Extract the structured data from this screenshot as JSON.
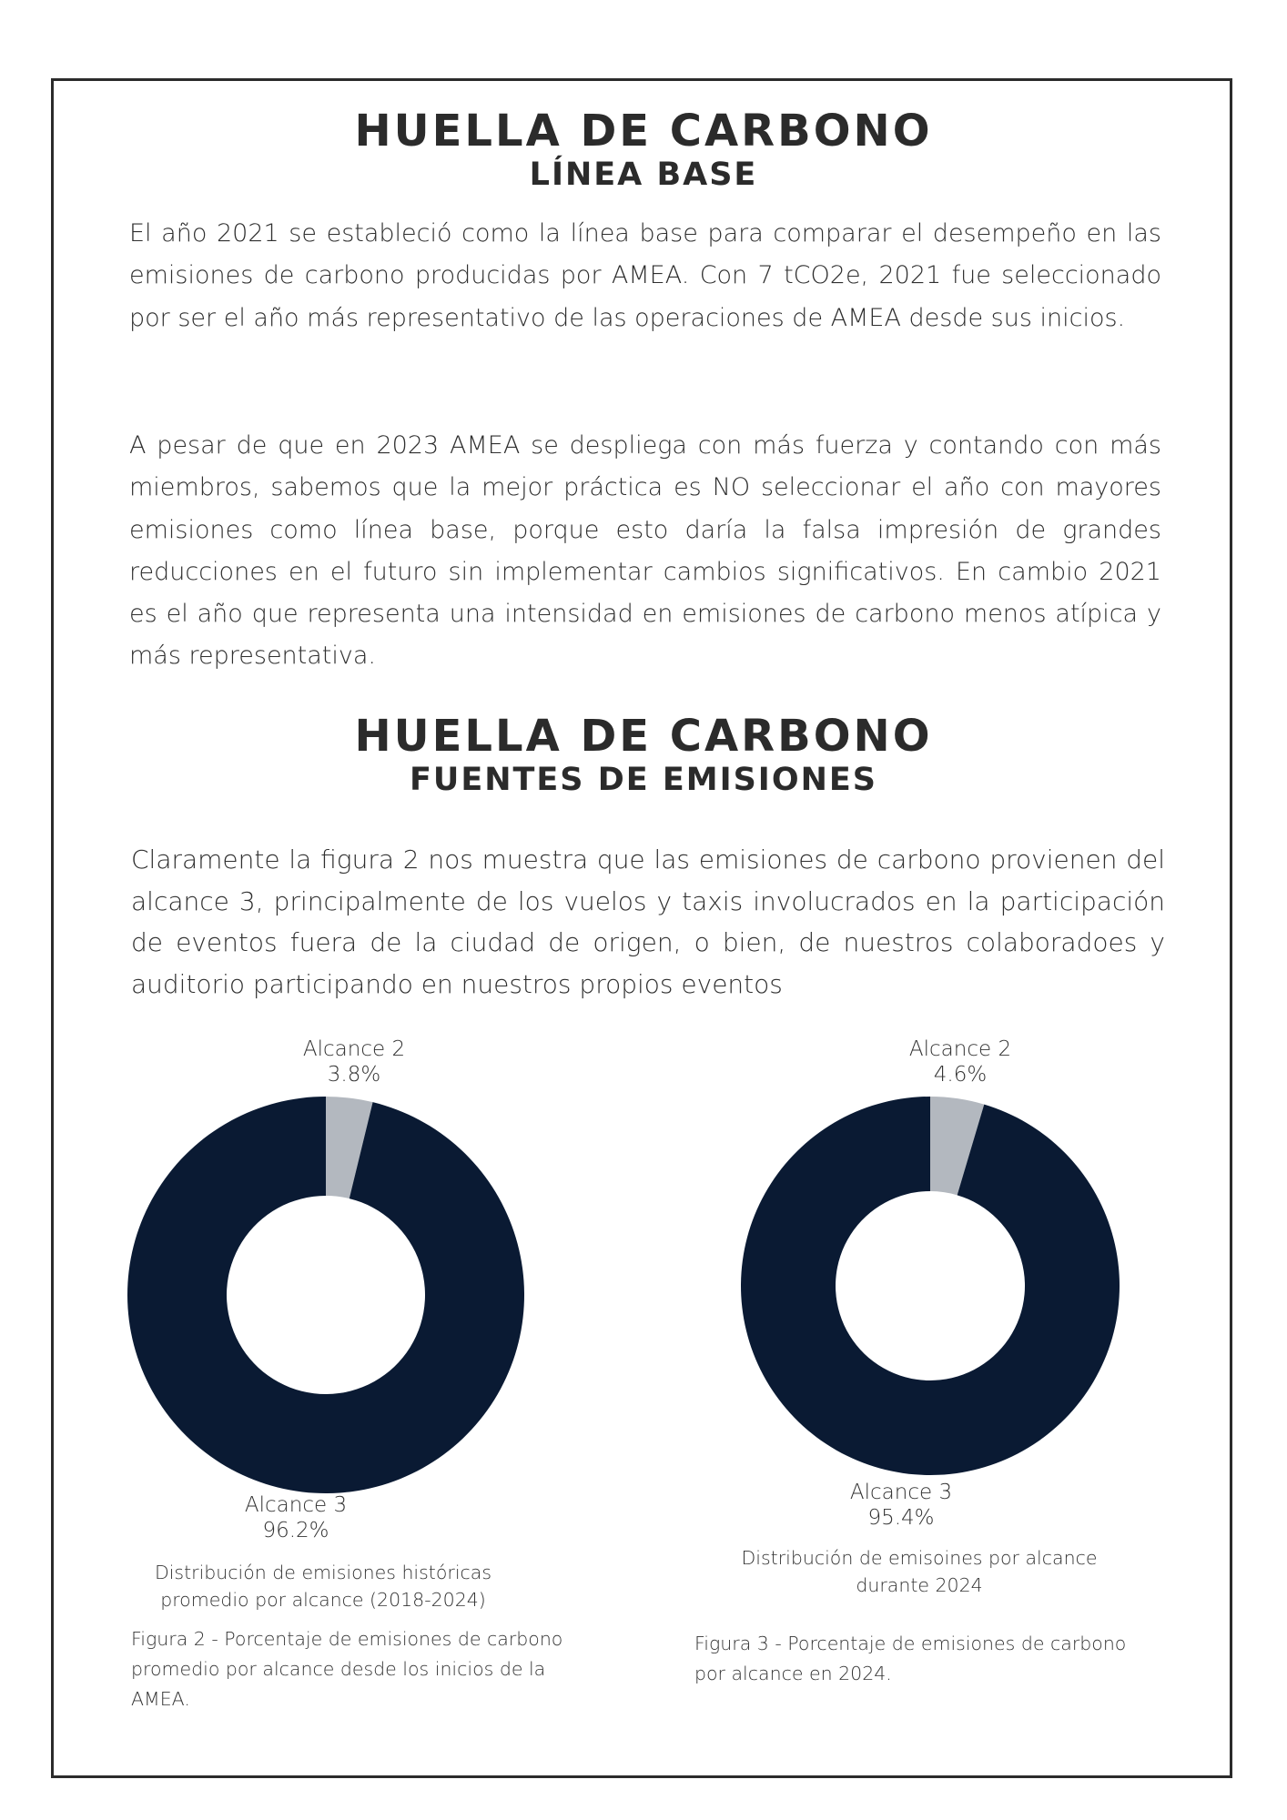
{
  "section1": {
    "title": "HUELLA DE CARBONO",
    "subtitle": "LÍNEA BASE",
    "paragraph1": "El año 2021 se estableció como la línea base para comparar el desempeño en las emisiones de carbono producidas por AMEA. Con 7 tCO2e, 2021 fue seleccionado por ser el año más representativo de las operaciones de AMEA desde sus inicios.",
    "paragraph2": "A pesar de que en 2023 AMEA se despliega con más fuerza y contando con más miembros, sabemos que la mejor práctica es NO seleccionar el año con mayores emisiones como línea base, porque esto daría la falsa impresión de grandes reducciones en el futuro sin implementar cambios significativos. En cambio 2021 es el año que representa una intensidad en emisiones de carbono menos atípica y más representativa."
  },
  "section2": {
    "title": "HUELLA DE CARBONO",
    "subtitle": "FUENTES DE EMISIONES",
    "paragraph": "Claramente la figura 2 nos muestra que las emisiones de carbono provienen del alcance 3, principalmente de los vuelos y taxis involucrados en la participación de eventos fuera de la ciudad de origen, o bien, de nuestros colaboradoes y auditorio participando en nuestros propios eventos"
  },
  "colors": {
    "alcance3": "#0a1a33",
    "alcance2": "#b3b8bf",
    "text": "#2b2b2b"
  },
  "chart_data": [
    {
      "type": "pie",
      "style": "donut",
      "title": "Distribución de emisiones históricas promedio por alcance (2018-2024)",
      "categories": [
        "Alcance 2",
        "Alcance 3"
      ],
      "values": [
        3.8,
        96.2
      ],
      "value_labels": [
        "3.8%",
        "96.2%"
      ],
      "colors": [
        "#b3b8bf",
        "#0a1a33"
      ],
      "caption": "Figura 2 - Porcentaje de emisiones de carbono promedio por alcance desde los inicios de la AMEA."
    },
    {
      "type": "pie",
      "style": "donut",
      "title": "Distribución de emisoines por alcance durante 2024",
      "categories": [
        "Alcance 2",
        "Alcance 3"
      ],
      "values": [
        4.6,
        95.4
      ],
      "value_labels": [
        "4.6%",
        "95.4%"
      ],
      "colors": [
        "#b3b8bf",
        "#0a1a33"
      ],
      "caption": "Figura 3 - Porcentaje de emisiones de carbono por alcance en 2024."
    }
  ]
}
